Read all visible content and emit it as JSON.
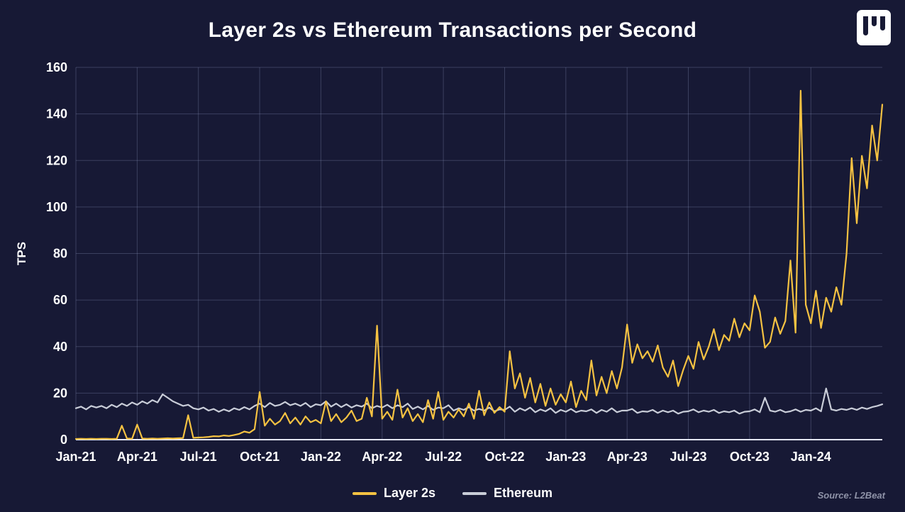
{
  "header": {
    "logo_icon": "l2beat-logo-icon"
  },
  "footer": {
    "source": "Source: L2Beat"
  },
  "legend": [
    {
      "label": "Layer 2s",
      "color": "#f5c242"
    },
    {
      "label": "Ethereum",
      "color": "#c9cdd8"
    }
  ],
  "chart_data": {
    "type": "line",
    "title": "Layer 2s vs Ethereum Transactions per Second",
    "xlabel": "",
    "ylabel": "TPS",
    "ylim": [
      0,
      160
    ],
    "xlim": [
      0,
      39.5
    ],
    "grid": true,
    "legend_position": "bottom",
    "yticks": [
      0,
      20,
      40,
      60,
      80,
      100,
      120,
      140,
      160
    ],
    "xticks": [
      0,
      3,
      6,
      9,
      12,
      15,
      18,
      21,
      24,
      27,
      30,
      33,
      36
    ],
    "xtick_labels": [
      "Jan-21",
      "Apr-21",
      "Jul-21",
      "Oct-21",
      "Jan-22",
      "Apr-22",
      "Jul-22",
      "Oct-22",
      "Jan-23",
      "Apr-23",
      "Jul-23",
      "Oct-23",
      "Jan-24"
    ],
    "x_unit": "months-since-Jan-2021",
    "x_start": 0,
    "x_step": 0.25,
    "series": [
      {
        "name": "Layer 2s",
        "color": "#f5c242",
        "values": [
          0.3,
          0.4,
          0.3,
          0.4,
          0.3,
          0.4,
          0.4,
          0.3,
          0.4,
          6,
          0.5,
          0.4,
          6.5,
          0.5,
          0.4,
          0.5,
          0.4,
          0.5,
          0.6,
          0.5,
          0.6,
          0.7,
          10.5,
          0.8,
          0.9,
          1,
          1.2,
          1.5,
          1.4,
          1.8,
          1.6,
          2,
          2.5,
          3.5,
          3,
          4.5,
          20.5,
          6,
          9,
          6.5,
          8,
          11.5,
          7,
          9.5,
          6.5,
          10,
          7.5,
          8.5,
          7,
          16.5,
          8,
          11,
          7.5,
          9.5,
          12.5,
          8,
          9,
          18,
          10,
          49,
          9,
          12,
          8.5,
          21.5,
          9.5,
          13.5,
          8,
          11,
          7.5,
          17,
          9,
          20.5,
          8.5,
          12,
          9.5,
          13,
          10,
          15.5,
          9,
          21,
          10.5,
          16,
          11.5,
          14,
          12,
          38,
          22,
          28.5,
          18,
          26.5,
          16,
          24,
          14.5,
          22,
          15,
          19.5,
          16,
          25,
          14,
          21,
          17,
          34,
          19,
          27,
          20,
          29.5,
          22,
          31,
          49.5,
          33,
          41,
          35,
          38,
          33.5,
          40.5,
          31,
          27,
          34,
          23,
          30,
          36,
          30.5,
          42,
          34.5,
          40,
          47.5,
          38.5,
          45,
          42.5,
          52,
          44,
          50,
          47,
          62,
          55,
          39.5,
          42,
          52.5,
          45.5,
          51,
          77,
          46,
          150,
          58,
          50,
          64,
          48,
          61,
          55,
          65.5,
          58,
          80,
          121,
          93,
          122,
          108,
          135,
          120,
          144
        ]
      },
      {
        "name": "Ethereum",
        "color": "#c9cdd8",
        "values": [
          13.5,
          14.2,
          13,
          14.5,
          13.8,
          14.5,
          13.5,
          15,
          14,
          15.5,
          14.5,
          16,
          15,
          16.5,
          15.5,
          17,
          16,
          19.5,
          18,
          16.5,
          15.5,
          14.5,
          15,
          13.5,
          13,
          13.8,
          12.5,
          13.2,
          12,
          13,
          12.2,
          13.5,
          12.8,
          14,
          13,
          14.5,
          15.5,
          14,
          15.8,
          14.5,
          15,
          16.2,
          14.8,
          15.5,
          14.5,
          15.8,
          14,
          15.2,
          14.8,
          16.5,
          14.2,
          15.5,
          14,
          15.2,
          13.8,
          14.8,
          14.2,
          15.5,
          13.5,
          14.5,
          13.8,
          15,
          13.5,
          14.8,
          14,
          15.5,
          13.2,
          14.2,
          13,
          14.5,
          12.8,
          13.8,
          13.5,
          14.8,
          12.5,
          13.5,
          12.8,
          14,
          12.5,
          13.2,
          12.5,
          13.8,
          12.2,
          13,
          12.8,
          14.2,
          12,
          13.5,
          12.5,
          13.8,
          11.8,
          13,
          12.2,
          13.5,
          11.5,
          12.8,
          12,
          13.2,
          11.8,
          12.5,
          12.2,
          13,
          11.5,
          12.8,
          12,
          13.5,
          11.8,
          12.5,
          12.5,
          13.2,
          11.5,
          12.2,
          12,
          12.8,
          11.5,
          12.5,
          11.8,
          12.5,
          11.2,
          12,
          12.2,
          13,
          11.8,
          12.5,
          12,
          12.8,
          11.5,
          12.2,
          11.8,
          12.5,
          11.2,
          12,
          12.2,
          13,
          11.8,
          18,
          12.5,
          12,
          12.8,
          11.8,
          12.2,
          13,
          12,
          12.8,
          12.5,
          13.5,
          12.2,
          22,
          13,
          12.5,
          13.2,
          12.8,
          13.5,
          12.8,
          13.8,
          13.2,
          14,
          14.5,
          15.2
        ]
      }
    ]
  }
}
